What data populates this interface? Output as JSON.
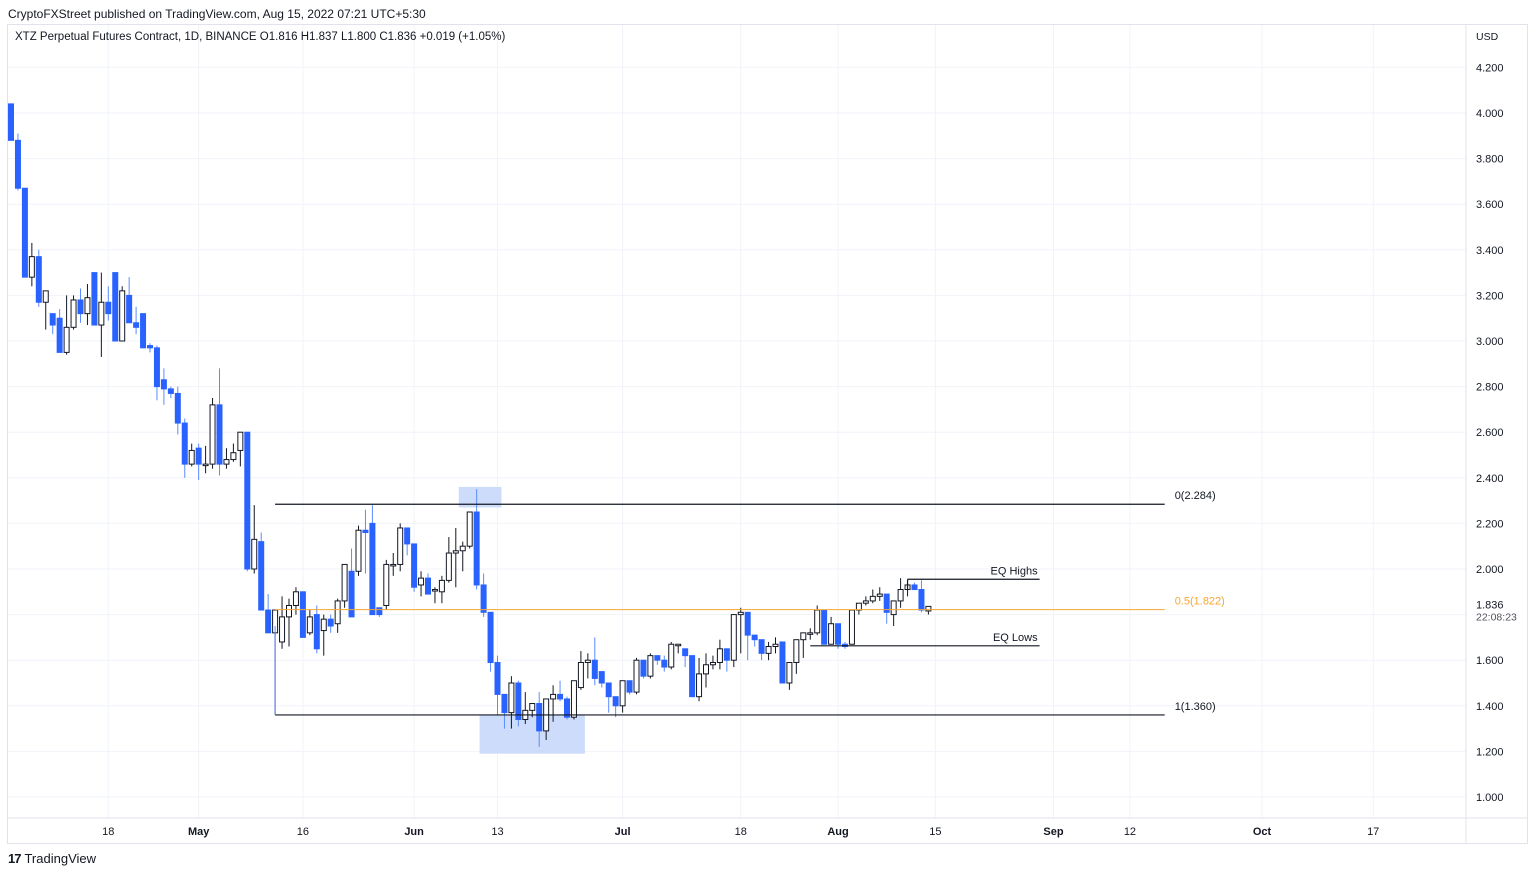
{
  "header": {
    "published_line": "CryptoFXStreet published on TradingView.com, Aug 15, 2022 07:21 UTC+5:30",
    "symbol_line": "XTZ Perpetual Futures Contract, 1D, BINANCE  O1.816  H1.837  L1.800  C1.836  +0.019 (+1.05%)"
  },
  "footer": {
    "logo_mark": "17",
    "logo_text": "TradingView"
  },
  "colors": {
    "up_body": "#ffffff",
    "up_border": "#131722",
    "down_body": "#2962ff",
    "grid": "#f0f3fa",
    "fib_line": "#131722",
    "fib_mid": "#f7a531",
    "highlight": "#c9d8fb"
  },
  "chart_data": {
    "type": "candlestick",
    "title": "XTZ Perpetual Futures Contract, 1D, BINANCE",
    "ylabel": "USD",
    "ylim": [
      0.85,
      4.35
    ],
    "y_ticks": [
      "4.200",
      "4.000",
      "3.800",
      "3.600",
      "3.400",
      "3.200",
      "3.000",
      "2.800",
      "2.600",
      "2.400",
      "2.200",
      "2.000",
      "1.600",
      "1.400",
      "1.200",
      "1.000"
    ],
    "y_tick_values": [
      4.2,
      4.0,
      3.8,
      3.6,
      3.4,
      3.2,
      3.0,
      2.8,
      2.6,
      2.4,
      2.2,
      2.0,
      1.6,
      1.4,
      1.2,
      1.0
    ],
    "x_ticks": [
      {
        "label": "18",
        "day": 14
      },
      {
        "label": "May",
        "day": 27
      },
      {
        "label": "16",
        "day": 42
      },
      {
        "label": "Jun",
        "day": 58
      },
      {
        "label": "13",
        "day": 70
      },
      {
        "label": "Jul",
        "day": 88
      },
      {
        "label": "18",
        "day": 105
      },
      {
        "label": "Aug",
        "day": 119
      },
      {
        "label": "15",
        "day": 133
      },
      {
        "label": "Sep",
        "day": 150
      },
      {
        "label": "12",
        "day": 161
      },
      {
        "label": "Oct",
        "day": 180
      },
      {
        "label": "17",
        "day": 196
      }
    ],
    "last_price": {
      "value": "1.836",
      "countdown": "22:08:23"
    },
    "ohlc": [
      [
        4.04,
        4.04,
        3.88,
        3.88
      ],
      [
        3.88,
        3.91,
        3.66,
        3.67
      ],
      [
        3.67,
        3.67,
        3.28,
        3.28
      ],
      [
        3.28,
        3.43,
        3.24,
        3.37
      ],
      [
        3.37,
        3.4,
        3.15,
        3.17
      ],
      [
        3.17,
        3.22,
        3.05,
        3.22
      ],
      [
        3.12,
        3.12,
        3.03,
        3.07
      ],
      [
        3.1,
        3.14,
        2.95,
        2.95
      ],
      [
        2.95,
        3.2,
        2.94,
        3.06
      ],
      [
        3.06,
        3.2,
        3.05,
        3.18
      ],
      [
        3.18,
        3.23,
        3.08,
        3.12
      ],
      [
        3.12,
        3.25,
        3.07,
        3.19
      ],
      [
        3.3,
        3.3,
        3.07,
        3.07
      ],
      [
        3.07,
        3.3,
        2.93,
        3.17
      ],
      [
        3.17,
        3.24,
        3.09,
        3.12
      ],
      [
        3.3,
        3.3,
        3.0,
        3.0
      ],
      [
        3.0,
        3.24,
        3.0,
        3.22
      ],
      [
        3.2,
        3.28,
        3.08,
        3.08
      ],
      [
        3.08,
        3.15,
        3.03,
        3.06
      ],
      [
        3.12,
        3.12,
        2.97,
        2.97
      ],
      [
        2.98,
        2.99,
        2.95,
        2.97
      ],
      [
        2.97,
        2.98,
        2.74,
        2.8
      ],
      [
        2.83,
        2.88,
        2.72,
        2.79
      ],
      [
        2.79,
        2.8,
        2.75,
        2.77
      ],
      [
        2.77,
        2.8,
        2.59,
        2.64
      ],
      [
        2.64,
        2.66,
        2.4,
        2.46
      ],
      [
        2.46,
        2.55,
        2.45,
        2.52
      ],
      [
        2.53,
        2.55,
        2.39,
        2.46
      ],
      [
        2.46,
        2.54,
        2.42,
        2.46
      ],
      [
        2.46,
        2.75,
        2.44,
        2.72
      ],
      [
        2.72,
        2.88,
        2.41,
        2.46
      ],
      [
        2.46,
        2.53,
        2.44,
        2.48
      ],
      [
        2.48,
        2.55,
        2.47,
        2.51
      ],
      [
        2.52,
        2.57,
        2.45,
        2.6
      ],
      [
        2.6,
        2.6,
        1.99,
        2.0
      ],
      [
        2.0,
        2.28,
        1.98,
        2.13
      ],
      [
        2.12,
        2.16,
        1.84,
        1.82
      ],
      [
        1.82,
        1.89,
        1.72,
        1.72
      ],
      [
        1.72,
        1.8,
        1.36,
        1.82
      ],
      [
        1.68,
        1.88,
        1.65,
        1.79
      ],
      [
        1.79,
        1.87,
        1.66,
        1.84
      ],
      [
        1.84,
        1.92,
        1.8,
        1.9
      ],
      [
        1.9,
        1.9,
        1.74,
        1.7
      ],
      [
        1.72,
        1.82,
        1.71,
        1.79
      ],
      [
        1.8,
        1.84,
        1.63,
        1.65
      ],
      [
        1.73,
        1.8,
        1.62,
        1.78
      ],
      [
        1.78,
        1.8,
        1.72,
        1.75
      ],
      [
        1.76,
        1.87,
        1.72,
        1.86
      ],
      [
        1.86,
        2.01,
        1.83,
        2.02
      ],
      [
        1.99,
        2.09,
        1.79,
        1.79
      ],
      [
        1.99,
        2.19,
        1.97,
        2.17
      ],
      [
        2.17,
        2.26,
        1.98,
        2.16
      ],
      [
        2.2,
        2.28,
        1.82,
        1.8
      ],
      [
        1.83,
        1.83,
        1.79,
        1.8
      ],
      [
        1.84,
        2.04,
        1.82,
        2.02
      ],
      [
        2.02,
        2.07,
        1.97,
        2.02
      ],
      [
        2.02,
        2.2,
        1.99,
        2.18
      ],
      [
        2.18,
        2.14,
        2.06,
        2.11
      ],
      [
        2.11,
        2.07,
        1.9,
        1.92
      ],
      [
        1.93,
        1.99,
        1.88,
        1.96
      ],
      [
        1.96,
        1.98,
        1.89,
        1.89
      ],
      [
        1.91,
        1.92,
        1.85,
        1.91
      ],
      [
        1.9,
        1.97,
        1.85,
        1.95
      ],
      [
        1.95,
        2.14,
        1.94,
        2.07
      ],
      [
        2.07,
        2.18,
        1.92,
        2.08
      ],
      [
        2.08,
        2.12,
        1.99,
        2.1
      ],
      [
        2.1,
        2.25,
        2.09,
        2.25
      ],
      [
        2.25,
        2.35,
        1.91,
        1.93
      ],
      [
        1.93,
        1.98,
        1.79,
        1.81
      ],
      [
        1.81,
        1.81,
        1.55,
        1.59
      ],
      [
        1.59,
        1.62,
        1.36,
        1.45
      ],
      [
        1.45,
        1.45,
        1.3,
        1.37
      ],
      [
        1.37,
        1.53,
        1.3,
        1.5
      ],
      [
        1.5,
        1.51,
        1.31,
        1.34
      ],
      [
        1.34,
        1.46,
        1.32,
        1.38
      ],
      [
        1.38,
        1.4,
        1.35,
        1.41
      ],
      [
        1.41,
        1.46,
        1.22,
        1.29
      ],
      [
        1.29,
        1.43,
        1.25,
        1.43
      ],
      [
        1.43,
        1.49,
        1.33,
        1.45
      ],
      [
        1.45,
        1.51,
        1.42,
        1.43
      ],
      [
        1.43,
        1.44,
        1.34,
        1.35
      ],
      [
        1.35,
        1.48,
        1.34,
        1.51
      ],
      [
        1.48,
        1.64,
        1.47,
        1.59
      ],
      [
        1.59,
        1.63,
        1.52,
        1.6
      ],
      [
        1.6,
        1.7,
        1.49,
        1.52
      ],
      [
        1.55,
        1.55,
        1.48,
        1.5
      ],
      [
        1.5,
        1.48,
        1.37,
        1.44
      ],
      [
        1.44,
        1.43,
        1.35,
        1.4
      ],
      [
        1.4,
        1.51,
        1.37,
        1.51
      ],
      [
        1.51,
        1.51,
        1.45,
        1.46
      ],
      [
        1.46,
        1.61,
        1.45,
        1.6
      ],
      [
        1.6,
        1.56,
        1.52,
        1.53
      ],
      [
        1.53,
        1.63,
        1.52,
        1.62
      ],
      [
        1.62,
        1.61,
        1.58,
        1.6
      ],
      [
        1.6,
        1.62,
        1.55,
        1.57
      ],
      [
        1.57,
        1.68,
        1.56,
        1.67
      ],
      [
        1.67,
        1.67,
        1.63,
        1.67
      ],
      [
        1.65,
        1.65,
        1.57,
        1.62
      ],
      [
        1.62,
        1.6,
        1.44,
        1.44
      ],
      [
        1.44,
        1.61,
        1.42,
        1.54
      ],
      [
        1.54,
        1.63,
        1.48,
        1.58
      ],
      [
        1.58,
        1.62,
        1.56,
        1.59
      ],
      [
        1.59,
        1.69,
        1.56,
        1.65
      ],
      [
        1.65,
        1.65,
        1.55,
        1.6
      ],
      [
        1.6,
        1.79,
        1.57,
        1.8
      ],
      [
        1.8,
        1.83,
        1.63,
        1.81
      ],
      [
        1.81,
        1.74,
        1.6,
        1.71
      ],
      [
        1.71,
        1.71,
        1.66,
        1.69
      ],
      [
        1.69,
        1.69,
        1.6,
        1.63
      ],
      [
        1.63,
        1.68,
        1.6,
        1.66
      ],
      [
        1.66,
        1.7,
        1.63,
        1.67
      ],
      [
        1.68,
        1.68,
        1.5,
        1.5
      ],
      [
        1.5,
        1.54,
        1.47,
        1.59
      ],
      [
        1.59,
        1.66,
        1.54,
        1.69
      ],
      [
        1.69,
        1.72,
        1.61,
        1.72
      ],
      [
        1.72,
        1.74,
        1.69,
        1.72
      ],
      [
        1.72,
        1.84,
        1.71,
        1.82
      ],
      [
        1.82,
        1.8,
        1.67,
        1.67
      ],
      [
        1.67,
        1.79,
        1.68,
        1.76
      ],
      [
        1.76,
        1.76,
        1.65,
        1.67
      ],
      [
        1.67,
        1.68,
        1.65,
        1.66
      ],
      [
        1.67,
        1.82,
        1.67,
        1.82
      ],
      [
        1.82,
        1.85,
        1.8,
        1.85
      ],
      [
        1.85,
        1.88,
        1.84,
        1.86
      ],
      [
        1.86,
        1.91,
        1.85,
        1.88
      ],
      [
        1.88,
        1.92,
        1.86,
        1.89
      ],
      [
        1.89,
        1.89,
        1.76,
        1.81
      ],
      [
        1.8,
        1.86,
        1.75,
        1.86
      ],
      [
        1.86,
        1.96,
        1.83,
        1.91
      ],
      [
        1.91,
        1.94,
        1.88,
        1.93
      ],
      [
        1.93,
        1.94,
        1.91,
        1.91
      ],
      [
        1.91,
        1.95,
        1.81,
        1.82
      ],
      [
        1.816,
        1.837,
        1.8,
        1.836
      ]
    ],
    "annotations": [
      {
        "type": "fib_level",
        "label": "0(2.284)",
        "price": 2.284,
        "from_day": 38,
        "to_day": 166
      },
      {
        "type": "fib_level",
        "label": "0.5(1.822)",
        "price": 1.822,
        "from_day": 38,
        "to_day": 166,
        "color": "#f7a531"
      },
      {
        "type": "fib_level",
        "label": "1(1.360)",
        "price": 1.36,
        "from_day": 38,
        "to_day": 166
      },
      {
        "type": "level",
        "label": "EQ Highs",
        "price": 1.955,
        "from_day": 129,
        "to_day": 148
      },
      {
        "type": "level",
        "label": "EQ Lows",
        "price": 1.663,
        "from_day": 115,
        "to_day": 148
      },
      {
        "type": "box",
        "price_top": 2.36,
        "price_bottom": 2.27,
        "from_day": 65,
        "to_day": 70
      },
      {
        "type": "box",
        "price_top": 1.36,
        "price_bottom": 1.19,
        "from_day": 68,
        "to_day": 82
      }
    ]
  }
}
